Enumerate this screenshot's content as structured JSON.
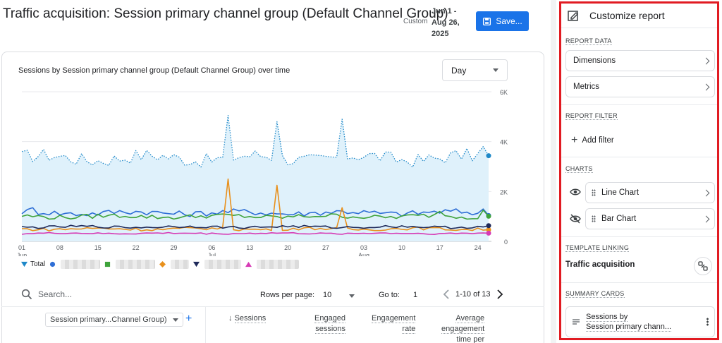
{
  "header": {
    "title": "Traffic acquisition: Session primary channel group (Default Channel Group)",
    "range_tag": "Custom",
    "date_line1": "Jun 1 -",
    "date_line2": "Aug 26,",
    "date_line3": "2025",
    "save_label": "Save..."
  },
  "chart_card": {
    "title": "Sessions by Session primary channel group (Default Channel Group) over time",
    "granularity": "Day",
    "legend_total": "Total"
  },
  "chart_data": {
    "type": "line",
    "yticks": [
      "6K",
      "4K",
      "2K",
      "0"
    ],
    "ylim": [
      0,
      6000
    ],
    "xticks": [
      {
        "day": 1,
        "d": "01",
        "m": "Jun"
      },
      {
        "day": 8,
        "d": "08",
        "m": ""
      },
      {
        "day": 15,
        "d": "15",
        "m": ""
      },
      {
        "day": 22,
        "d": "22",
        "m": ""
      },
      {
        "day": 29,
        "d": "29",
        "m": ""
      },
      {
        "day": 36,
        "d": "06",
        "m": "Jul"
      },
      {
        "day": 43,
        "d": "13",
        "m": ""
      },
      {
        "day": 50,
        "d": "20",
        "m": ""
      },
      {
        "day": 57,
        "d": "27",
        "m": ""
      },
      {
        "day": 64,
        "d": "03",
        "m": "Aug"
      },
      {
        "day": 71,
        "d": "10",
        "m": ""
      },
      {
        "day": 78,
        "d": "17",
        "m": ""
      },
      {
        "day": 85,
        "d": "24",
        "m": ""
      }
    ],
    "x_days": 87,
    "series": [
      {
        "key": "total",
        "color": "#1e88c8",
        "dotted": true,
        "fill": "#dff1fb",
        "base": 3350,
        "noise": 280,
        "spikes": [
          [
            39,
            5050
          ],
          [
            48,
            4800
          ],
          [
            60,
            4900
          ],
          [
            86,
            3800
          ]
        ]
      },
      {
        "key": "s1",
        "color": "#2f6fd6",
        "base": 1150,
        "noise": 120,
        "spikes": [
          [
            3,
            1350
          ],
          [
            86,
            1300
          ]
        ]
      },
      {
        "key": "s2",
        "color": "#3ea33b",
        "base": 1000,
        "noise": 90,
        "spikes": [
          [
            78,
            1200
          ],
          [
            86,
            1250
          ]
        ]
      },
      {
        "key": "s3",
        "color": "#e8901c",
        "base": 500,
        "noise": 60,
        "spikes": [
          [
            39,
            2500
          ],
          [
            48,
            2250
          ],
          [
            60,
            1350
          ]
        ]
      },
      {
        "key": "s4",
        "color": "#1f2a5a",
        "base": 580,
        "noise": 50,
        "spikes": []
      },
      {
        "key": "s5",
        "color": "#d63ab5",
        "base": 320,
        "noise": 30,
        "spikes": []
      }
    ]
  },
  "table": {
    "search_placeholder": "Search...",
    "rows_per_page_label": "Rows per page:",
    "rows_per_page": "10",
    "goto_label": "Go to:",
    "goto_value": "1",
    "page_info": "1-10 of 13",
    "dimension_select": "Session primary...Channel Group)",
    "columns": [
      {
        "label": "Sessions",
        "line2": ""
      },
      {
        "label": "Engaged",
        "line2": "sessions"
      },
      {
        "label": "Engagement",
        "line2": "rate"
      },
      {
        "label": "Average",
        "line2": "engagement",
        "line3": "time per"
      }
    ]
  },
  "panel": {
    "title": "Customize report",
    "report_data": "REPORT DATA",
    "dimensions": "Dimensions",
    "metrics": "Metrics",
    "report_filter": "REPORT FILTER",
    "add_filter": "Add filter",
    "charts": "CHARTS",
    "line_chart": "Line Chart",
    "bar_chart": "Bar Chart",
    "template_linking": "TEMPLATE LINKING",
    "template_name": "Traffic acquisition",
    "summary_cards": "SUMMARY CARDS",
    "card_line1": "Sessions by",
    "card_line2": "Session primary chann..."
  }
}
